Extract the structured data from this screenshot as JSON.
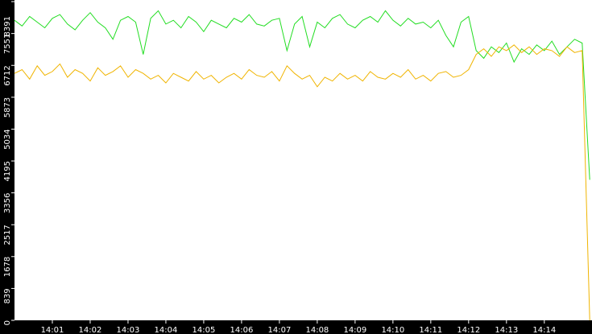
{
  "chart_data": {
    "type": "line",
    "x": [
      0,
      0.2,
      0.4,
      0.6,
      0.8,
      1,
      1.2,
      1.4,
      1.6,
      1.8,
      2,
      2.2,
      2.4,
      2.6,
      2.8,
      3,
      3.2,
      3.4,
      3.6,
      3.8,
      4,
      4.2,
      4.4,
      4.6,
      4.8,
      5,
      5.2,
      5.4,
      5.6,
      5.8,
      6,
      6.2,
      6.4,
      6.6,
      6.8,
      7,
      7.2,
      7.4,
      7.6,
      7.8,
      8,
      8.2,
      8.4,
      8.6,
      8.8,
      9,
      9.2,
      9.4,
      9.6,
      9.8,
      10,
      10.2,
      10.4,
      10.6,
      10.8,
      11,
      11.2,
      11.4,
      11.6,
      11.8,
      12,
      12.2,
      12.4,
      12.6,
      12.8,
      13,
      13.2,
      13.4,
      13.6,
      13.8,
      14,
      14.2,
      14.4,
      14.6,
      14.8,
      15,
      15.2
    ],
    "series": [
      {
        "color": "#22dd22",
        "values": [
          7900,
          7750,
          8000,
          7850,
          7700,
          7950,
          8050,
          7800,
          7650,
          7900,
          8100,
          7850,
          7700,
          7400,
          7900,
          8000,
          7850,
          7000,
          7950,
          8150,
          7800,
          7900,
          7700,
          8000,
          7850,
          7600,
          7900,
          7800,
          7700,
          7950,
          7850,
          8050,
          7800,
          7750,
          7900,
          7950,
          7100,
          7800,
          8000,
          7200,
          7850,
          7700,
          7950,
          8050,
          7800,
          7700,
          7900,
          8000,
          7850,
          8150,
          7900,
          7750,
          7950,
          7800,
          7850,
          7700,
          7900,
          7500,
          7200,
          7850,
          8000,
          7100,
          6900,
          7200,
          7050,
          7300,
          6800,
          7150,
          7000,
          7250,
          7100,
          7350,
          7000,
          7200,
          7400,
          7300,
          3700
        ]
      },
      {
        "color": "#f0b400",
        "values": [
          6500,
          6600,
          6350,
          6700,
          6450,
          6550,
          6750,
          6400,
          6600,
          6500,
          6300,
          6650,
          6450,
          6550,
          6700,
          6400,
          6600,
          6500,
          6350,
          6450,
          6250,
          6500,
          6400,
          6300,
          6550,
          6350,
          6450,
          6250,
          6400,
          6500,
          6350,
          6600,
          6450,
          6400,
          6550,
          6300,
          6700,
          6500,
          6350,
          6450,
          6150,
          6400,
          6300,
          6500,
          6350,
          6450,
          6300,
          6550,
          6400,
          6350,
          6500,
          6400,
          6600,
          6350,
          6450,
          6300,
          6500,
          6550,
          6400,
          6450,
          6600,
          7000,
          7150,
          6950,
          7200,
          7100,
          7250,
          7050,
          7200,
          7000,
          7150,
          7100,
          6950,
          7200,
          7050,
          7100,
          0
        ]
      }
    ],
    "xlim": [
      0,
      15.26
    ],
    "xticks": [
      {
        "value": 1,
        "label": "14:01"
      },
      {
        "value": 2,
        "label": "14:02"
      },
      {
        "value": 3,
        "label": "14:03"
      },
      {
        "value": 4,
        "label": "14:04"
      },
      {
        "value": 5,
        "label": "14:05"
      },
      {
        "value": 6,
        "label": "14:06"
      },
      {
        "value": 7,
        "label": "14:07"
      },
      {
        "value": 8,
        "label": "14:08"
      },
      {
        "value": 9,
        "label": "14:09"
      },
      {
        "value": 10,
        "label": "14:10"
      },
      {
        "value": 11,
        "label": "14:11"
      },
      {
        "value": 12,
        "label": "14:12"
      },
      {
        "value": 13,
        "label": "14:13"
      },
      {
        "value": 14,
        "label": "14:14"
      }
    ],
    "ylim": [
      0,
      8391
    ],
    "yticks": [
      0,
      839,
      1678,
      2517,
      3356,
      4195,
      5034,
      5873,
      6712,
      7551,
      8391
    ]
  }
}
